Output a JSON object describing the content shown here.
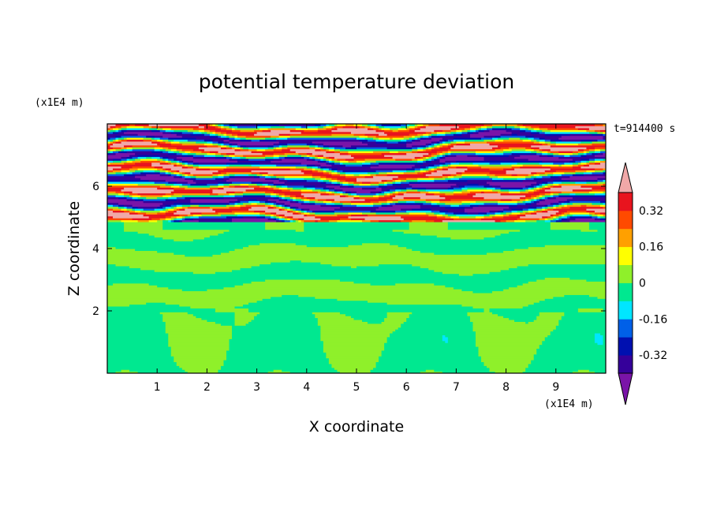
{
  "chart_data": {
    "type": "heatmap",
    "title": "potential temperature deviation",
    "xlabel": "X coordinate",
    "ylabel": "Z coordinate",
    "x_unit": "(x1E4 m)",
    "y_unit": "(x1E4 m)",
    "time_label": "t=914400 s",
    "xlim": [
      0,
      10
    ],
    "ylim": [
      0,
      8
    ],
    "x_ticks": [
      "1",
      "2",
      "3",
      "4",
      "5",
      "6",
      "7",
      "8",
      "9"
    ],
    "y_ticks": [
      "2",
      "4",
      "6"
    ],
    "colorbar": {
      "levels": [
        -0.4,
        -0.32,
        -0.24,
        -0.16,
        -0.08,
        0,
        0.08,
        0.16,
        0.24,
        0.32,
        0.4
      ],
      "colors": [
        "#7a14a8",
        "#35009a",
        "#0010b0",
        "#0060e8",
        "#00e6ff",
        "#00e890",
        "#8ff02a",
        "#ffff00",
        "#ffa000",
        "#ff4a00",
        "#e8141e",
        "#f0a8a8"
      ],
      "tick_labels": [
        "0.32",
        "0.16",
        "0",
        "-0.16",
        "-0.32"
      ],
      "extend": "both"
    },
    "grid": false
  }
}
